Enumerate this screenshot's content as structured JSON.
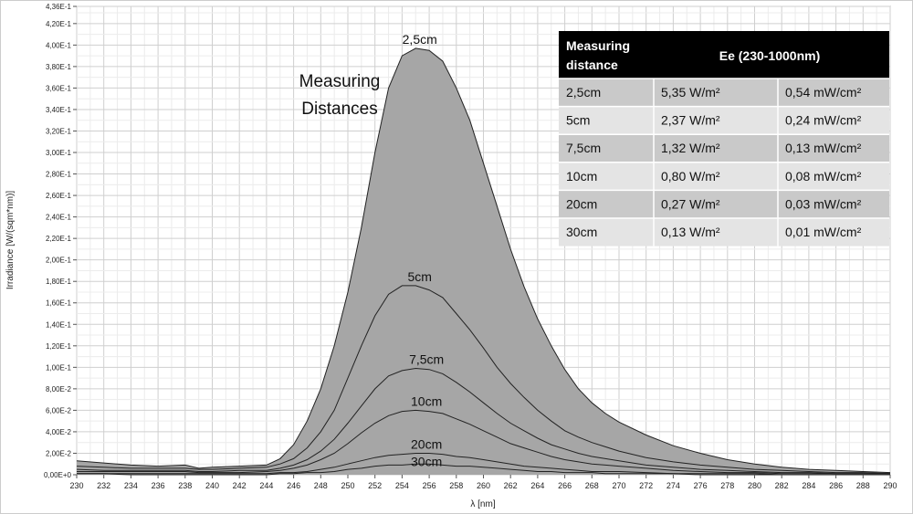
{
  "chart_data": {
    "type": "area",
    "xlabel": "λ [nm]",
    "ylabel": "Irradiance [W/(sqm*nm)]",
    "xlim": [
      230,
      290
    ],
    "ylim": [
      0,
      0.436
    ],
    "x_ticks": [
      230,
      232,
      234,
      236,
      238,
      240,
      242,
      244,
      246,
      248,
      250,
      252,
      254,
      256,
      258,
      260,
      262,
      264,
      266,
      268,
      270,
      272,
      274,
      276,
      278,
      280,
      282,
      284,
      286,
      288,
      290
    ],
    "x_tick_labels": [
      "230",
      "232",
      "234",
      "236",
      "238",
      "240",
      "242",
      "244",
      "246",
      "248",
      "250",
      "252",
      "254",
      "256",
      "258",
      "260",
      "262",
      "264",
      "266",
      "268",
      "270",
      "272",
      "274",
      "276",
      "278",
      "280",
      "282",
      "284",
      "286",
      "288",
      "290"
    ],
    "y_ticks": [
      0,
      0.02,
      0.04,
      0.06,
      0.08,
      0.1,
      0.12,
      0.14,
      0.16,
      0.18,
      0.2,
      0.22,
      0.24,
      0.26,
      0.28,
      0.3,
      0.32,
      0.34,
      0.36,
      0.38,
      0.4,
      0.42,
      0.436
    ],
    "y_tick_labels": [
      "0,00E+0",
      "2,00E-2",
      "4,00E-2",
      "6,00E-2",
      "8,00E-2",
      "1,00E-1",
      "1,20E-1",
      "1,40E-1",
      "1,60E-1",
      "1,80E-1",
      "2,00E-1",
      "2,20E-1",
      "2,40E-1",
      "2,60E-1",
      "2,80E-1",
      "3,00E-1",
      "3,20E-1",
      "3,40E-1",
      "3,60E-1",
      "3,80E-1",
      "4,00E-1",
      "4,20E-1",
      "4,36E-1"
    ],
    "grid": true,
    "x": [
      230,
      232,
      234,
      236,
      238,
      239,
      240,
      242,
      244,
      245,
      246,
      247,
      248,
      249,
      250,
      251,
      252,
      253,
      254,
      255,
      256,
      257,
      258,
      259,
      260,
      261,
      262,
      263,
      264,
      265,
      266,
      267,
      268,
      269,
      270,
      272,
      274,
      276,
      278,
      280,
      282,
      284,
      286,
      288,
      290
    ],
    "series": [
      {
        "name": "2,5cm",
        "values": [
          0.013,
          0.011,
          0.009,
          0.008,
          0.009,
          0.006,
          0.007,
          0.008,
          0.009,
          0.015,
          0.028,
          0.05,
          0.08,
          0.12,
          0.17,
          0.23,
          0.3,
          0.36,
          0.39,
          0.397,
          0.395,
          0.385,
          0.36,
          0.33,
          0.29,
          0.25,
          0.21,
          0.175,
          0.145,
          0.12,
          0.098,
          0.08,
          0.067,
          0.057,
          0.049,
          0.037,
          0.027,
          0.02,
          0.014,
          0.01,
          0.007,
          0.005,
          0.004,
          0.003,
          0.002
        ]
      },
      {
        "name": "5cm",
        "values": [
          0.008,
          0.007,
          0.006,
          0.006,
          0.006,
          0.005,
          0.005,
          0.006,
          0.007,
          0.01,
          0.015,
          0.025,
          0.04,
          0.06,
          0.09,
          0.12,
          0.148,
          0.168,
          0.176,
          0.176,
          0.172,
          0.165,
          0.15,
          0.135,
          0.118,
          0.1,
          0.085,
          0.072,
          0.06,
          0.05,
          0.041,
          0.035,
          0.03,
          0.026,
          0.022,
          0.016,
          0.012,
          0.009,
          0.007,
          0.005,
          0.004,
          0.003,
          0.002,
          0.002,
          0.001
        ]
      },
      {
        "name": "7,5cm",
        "values": [
          0.005,
          0.004,
          0.004,
          0.004,
          0.004,
          0.003,
          0.003,
          0.004,
          0.004,
          0.006,
          0.009,
          0.014,
          0.022,
          0.033,
          0.048,
          0.064,
          0.08,
          0.092,
          0.097,
          0.099,
          0.098,
          0.094,
          0.086,
          0.077,
          0.067,
          0.057,
          0.048,
          0.041,
          0.034,
          0.028,
          0.024,
          0.02,
          0.017,
          0.015,
          0.013,
          0.009,
          0.007,
          0.005,
          0.004,
          0.003,
          0.002,
          0.002,
          0.001,
          0.001,
          0.001
        ]
      },
      {
        "name": "10cm",
        "values": [
          0.003,
          0.003,
          0.003,
          0.003,
          0.003,
          0.002,
          0.002,
          0.002,
          0.003,
          0.004,
          0.006,
          0.009,
          0.014,
          0.02,
          0.029,
          0.039,
          0.048,
          0.055,
          0.059,
          0.06,
          0.059,
          0.057,
          0.052,
          0.047,
          0.041,
          0.035,
          0.029,
          0.025,
          0.021,
          0.017,
          0.014,
          0.012,
          0.01,
          0.009,
          0.008,
          0.006,
          0.004,
          0.003,
          0.002,
          0.002,
          0.001,
          0.001,
          0.001,
          0.001,
          0.001
        ]
      },
      {
        "name": "20cm",
        "values": [
          0.001,
          0.001,
          0.001,
          0.001,
          0.001,
          0.001,
          0.001,
          0.001,
          0.001,
          0.002,
          0.002,
          0.003,
          0.005,
          0.007,
          0.01,
          0.013,
          0.016,
          0.018,
          0.019,
          0.02,
          0.02,
          0.019,
          0.017,
          0.016,
          0.014,
          0.012,
          0.01,
          0.008,
          0.007,
          0.006,
          0.005,
          0.004,
          0.003,
          0.003,
          0.003,
          0.002,
          0.001,
          0.001,
          0.001,
          0.001,
          0,
          0,
          0,
          0,
          0
        ]
      },
      {
        "name": "30cm",
        "values": [
          0.001,
          0.001,
          0,
          0,
          0,
          0,
          0,
          0,
          0,
          0.001,
          0.001,
          0.002,
          0.002,
          0.003,
          0.005,
          0.006,
          0.008,
          0.009,
          0.009,
          0.01,
          0.01,
          0.009,
          0.008,
          0.008,
          0.007,
          0.006,
          0.005,
          0.004,
          0.003,
          0.003,
          0.002,
          0.002,
          0.002,
          0.001,
          0.001,
          0.001,
          0.001,
          0,
          0,
          0,
          0,
          0,
          0,
          0,
          0
        ]
      }
    ],
    "curve_labels": [
      {
        "text": "2,5cm",
        "x": 255.3,
        "y": 0.397
      },
      {
        "text": "5cm",
        "x": 255.3,
        "y": 0.176
      },
      {
        "text": "7,5cm",
        "x": 255.8,
        "y": 0.099
      },
      {
        "text": "10cm",
        "x": 255.8,
        "y": 0.06
      },
      {
        "text": "20cm",
        "x": 255.8,
        "y": 0.02
      },
      {
        "text": "30cm",
        "x": 255.8,
        "y": 0.004
      }
    ],
    "annotation": {
      "line1": "Measuring",
      "line2": "Distances"
    },
    "fill_color": "#a6a6a6",
    "table": {
      "header": {
        "col1_line1": "Measuring",
        "col1_line2": "distance",
        "col2": "Ee  (230-1000nm)"
      },
      "rows": [
        [
          "2,5cm",
          "5,35 W/m²",
          "0,54 mW/cm²"
        ],
        [
          "5cm",
          "2,37 W/m²",
          "0,24 mW/cm²"
        ],
        [
          "7,5cm",
          "1,32 W/m²",
          "0,13 mW/cm²"
        ],
        [
          "10cm",
          "0,80 W/m²",
          "0,08 mW/cm²"
        ],
        [
          "20cm",
          "0,27 W/m²",
          "0,03 mW/cm²"
        ],
        [
          "30cm",
          "0,13 W/m²",
          "0,01 mW/cm²"
        ]
      ],
      "row_colors": [
        "#c9c9c9",
        "#e4e4e4"
      ],
      "header_color": "#000000"
    }
  }
}
